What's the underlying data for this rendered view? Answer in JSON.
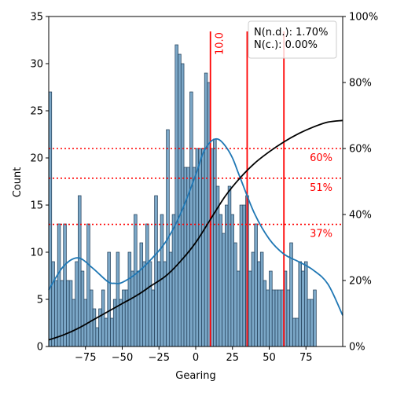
{
  "chart_data": {
    "type": "bar",
    "xlabel": "Gearing",
    "ylabel": "Count",
    "xlim": [
      -100,
      100
    ],
    "ylim": [
      0,
      35
    ],
    "y2lim": [
      0,
      100
    ],
    "x_ticks": [
      -75,
      -50,
      -25,
      0,
      25,
      50,
      75
    ],
    "y_ticks": [
      0,
      5,
      10,
      15,
      20,
      25,
      30,
      35
    ],
    "y2_ticks": [
      "0%",
      "20%",
      "40%",
      "60%",
      "80%",
      "100%"
    ],
    "bin_start": -100,
    "bin_width": 2,
    "counts": [
      27,
      9,
      7,
      13,
      7,
      13,
      7,
      7,
      5,
      9,
      16,
      8,
      5,
      13,
      6,
      4,
      2,
      4,
      6,
      3,
      10,
      3,
      5,
      10,
      5,
      6,
      6,
      10,
      8,
      14,
      8,
      11,
      9,
      13,
      9,
      6,
      16,
      9,
      14,
      9,
      23,
      10,
      14,
      32,
      31,
      30,
      19,
      19,
      27,
      19,
      21,
      21,
      21,
      29,
      28,
      21,
      22,
      17,
      14,
      12,
      15,
      17,
      14,
      11,
      8,
      15,
      15,
      16,
      8,
      10,
      13,
      9,
      10,
      7,
      6,
      8,
      6,
      6,
      6,
      6,
      8,
      6,
      11,
      3,
      3,
      9,
      8,
      9,
      5,
      5,
      6
    ],
    "kde": {
      "name": "KDE",
      "x": [
        -100,
        -90,
        -80,
        -70,
        -60,
        -55,
        -50,
        -40,
        -30,
        -20,
        -10,
        0,
        5,
        10,
        15,
        20,
        25,
        30,
        40,
        50,
        60,
        70,
        80,
        90,
        100
      ],
      "y": [
        6,
        8.5,
        9.4,
        8.3,
        6.9,
        6.7,
        6.8,
        7.8,
        9.3,
        11.2,
        14.2,
        18.2,
        20.5,
        21.7,
        22,
        21.3,
        20,
        18,
        14.1,
        11.4,
        9.8,
        9,
        8.1,
        6.6,
        3.3
      ]
    },
    "cdf": {
      "name": "Cumulative share",
      "x": [
        -100,
        -90,
        -80,
        -70,
        -60,
        -50,
        -40,
        -30,
        -20,
        -10,
        0,
        10,
        20,
        30,
        40,
        50,
        60,
        70,
        80,
        90,
        100
      ],
      "y": [
        2,
        3.5,
        5.5,
        8,
        10.5,
        13,
        15.5,
        18.5,
        21.5,
        26,
        31.5,
        38.5,
        45.5,
        51,
        55.5,
        59,
        62,
        64.5,
        66.5,
        68,
        68.5
      ]
    },
    "vertical_lines": [
      {
        "x": 10,
        "label": "10.0"
      },
      {
        "x": 35,
        "label": ""
      },
      {
        "x": 60,
        "label": ""
      }
    ],
    "horizontal_lines": [
      {
        "y_pct": 60,
        "label": "60%"
      },
      {
        "y_pct": 51,
        "label": "51%"
      },
      {
        "y_pct": 37,
        "label": "37%"
      }
    ],
    "legend": {
      "placement": "top-right",
      "lines": [
        "N(n.d.): 1.70%",
        "N(c.): 0.00%"
      ]
    },
    "colors": {
      "bar_fill": "#7ba7c7",
      "bar_edge": "#1f3b55",
      "kde": "#1f77b4",
      "cdf": "#000000",
      "marker": "#ff0000"
    }
  }
}
